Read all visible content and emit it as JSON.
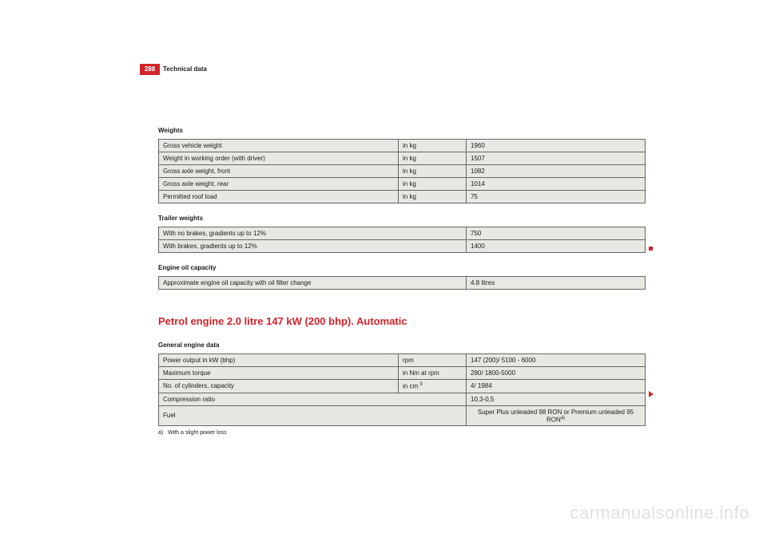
{
  "header": {
    "page_number": "288",
    "section": "Technical data"
  },
  "weights": {
    "heading": "Weights",
    "rows": [
      {
        "label": "Gross vehicle weight",
        "unit": "in kg",
        "value": "1960"
      },
      {
        "label": "Weight in working order (with driver)",
        "unit": "in kg",
        "value": "1507"
      },
      {
        "label": "Gross axle weight, front",
        "unit": "in kg",
        "value": "1082"
      },
      {
        "label": "Gross axle weight, rear",
        "unit": "in kg",
        "value": "1014"
      },
      {
        "label": "Permitted roof load",
        "unit": "in kg",
        "value": "75"
      }
    ]
  },
  "trailer": {
    "heading": "Trailer weights",
    "rows": [
      {
        "label": "With no brakes, gradients up to 12%",
        "value": "750"
      },
      {
        "label": "With brakes, gradients up to 12%",
        "value": "1400"
      }
    ]
  },
  "oil": {
    "heading": "Engine oil capacity",
    "rows": [
      {
        "label": "Approximate engine oil capacity with oil filter change",
        "value": "4.8 litres"
      }
    ]
  },
  "engine": {
    "title": "Petrol engine 2.0 litre 147 kW (200 bhp). Automatic",
    "heading": "General engine data",
    "rows": [
      {
        "label": "Power output in kW (bhp)",
        "unit": "rpm",
        "value": "147 (200)/ 5100 - 6000"
      },
      {
        "label": "Maximum torque",
        "unit": "in Nm at rpm",
        "value": "280/ 1800-5000"
      },
      {
        "label": "No. of cylinders, capacity",
        "unit_html": "in cm <sup>3</sup>",
        "value": "4/ 1984"
      },
      {
        "label": "Compression ratio",
        "unit": "",
        "value": "10,3-0,5"
      },
      {
        "label": "Fuel",
        "unit": "",
        "value_html": "Super Plus unleaded 98 RON or Premium unleaded 95 RON<sup>a)</sup>",
        "center": true
      }
    ],
    "footnote_marker": "a)",
    "footnote_text": "With a slight power loss"
  },
  "watermark": "carmanualsonline.info"
}
